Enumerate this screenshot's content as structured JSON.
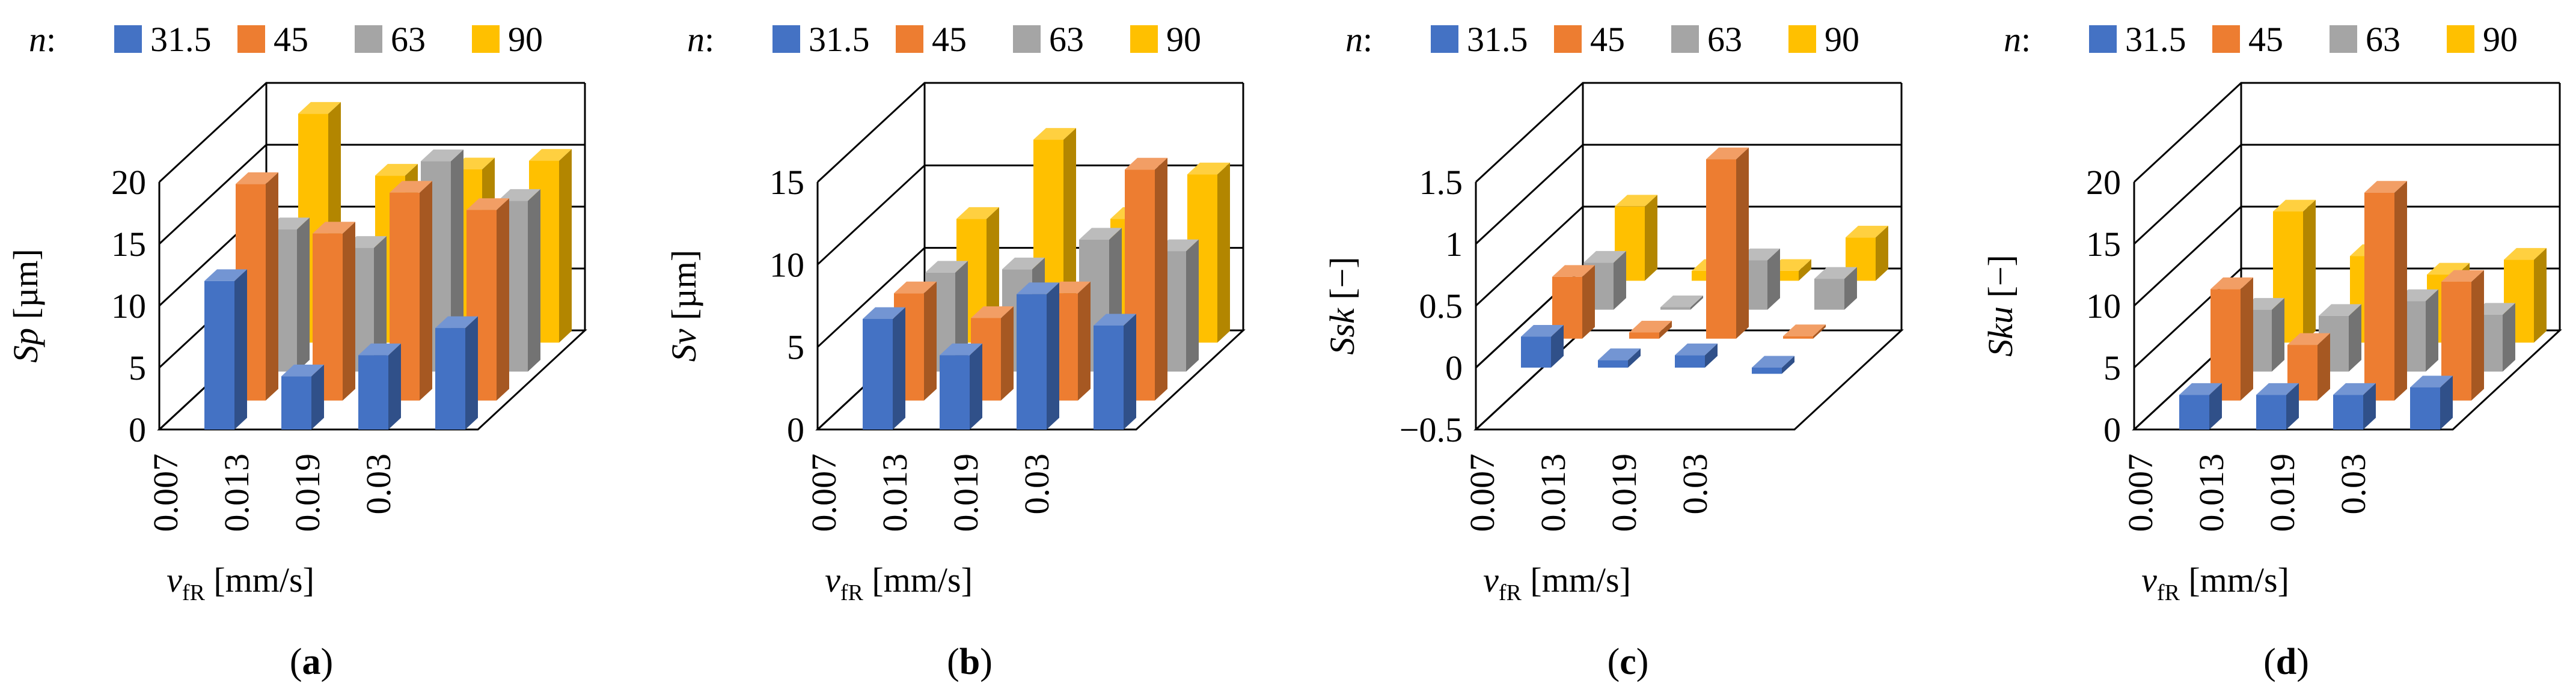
{
  "legend_title": "n:",
  "colors": {
    "31.5": "#4472C4",
    "45": "#ED7D31",
    "63": "#A5A5A5",
    "90": "#FFC000",
    "grid": "#000000"
  },
  "chart_data": [
    {
      "type": "bar",
      "panel_label": "(a)",
      "title": "",
      "ylabel_symbol": "Sp",
      "ylabel_unit": "[µm]",
      "xlabel_symbol": "v",
      "xlabel_sub": "fR",
      "xlabel_unit": "[mm/s]",
      "categories": [
        "0.007",
        "0.013",
        "0.019",
        "0.03"
      ],
      "ylim": [
        0,
        20
      ],
      "yticks": [
        "0",
        "5",
        "10",
        "15",
        "20"
      ],
      "series": [
        {
          "name": "31.5",
          "values": [
            12,
            4.3,
            6,
            8.2
          ]
        },
        {
          "name": "45",
          "values": [
            17.5,
            13.5,
            16.8,
            15.4
          ]
        },
        {
          "name": "63",
          "values": [
            11.5,
            10,
            17,
            13.8
          ]
        },
        {
          "name": "90",
          "values": [
            18.5,
            13.5,
            14,
            14.7
          ]
        }
      ]
    },
    {
      "type": "bar",
      "panel_label": "(b)",
      "title": "",
      "ylabel_symbol": "Sv",
      "ylabel_unit": "[µm]",
      "xlabel_symbol": "v",
      "xlabel_sub": "fR",
      "xlabel_unit": "[mm/s]",
      "categories": [
        "0.007",
        "0.013",
        "0.019",
        "0.03"
      ],
      "ylim": [
        0,
        15
      ],
      "yticks": [
        "0",
        "5",
        "10",
        "15"
      ],
      "series": [
        {
          "name": "31.5",
          "values": [
            6.7,
            4.5,
            8.2,
            6.3
          ]
        },
        {
          "name": "45",
          "values": [
            6.5,
            5,
            6.5,
            14
          ]
        },
        {
          "name": "63",
          "values": [
            6,
            6.2,
            8,
            7.3
          ]
        },
        {
          "name": "90",
          "values": [
            7.5,
            12.3,
            7.5,
            10.2
          ]
        }
      ]
    },
    {
      "type": "bar",
      "panel_label": "(c)",
      "title": "",
      "ylabel_symbol": "Ssk",
      "ylabel_unit": "[−]",
      "xlabel_symbol": "v",
      "xlabel_sub": "fR",
      "xlabel_unit": "[mm/s]",
      "categories": [
        "0.007",
        "0.013",
        "0.019",
        "0.03"
      ],
      "ylim": [
        -0.5,
        1.5
      ],
      "yticks": [
        "−0.5",
        "0",
        "0.5",
        "1",
        "1.5"
      ],
      "series": [
        {
          "name": "31.5",
          "values": [
            0.25,
            0.06,
            0.1,
            -0.05
          ]
        },
        {
          "name": "45",
          "values": [
            0.5,
            0.05,
            1.45,
            0.02
          ]
        },
        {
          "name": "63",
          "values": [
            0.38,
            0.02,
            0.4,
            0.25
          ]
        },
        {
          "name": "90",
          "values": [
            0.6,
            0.08,
            0.08,
            0.35
          ]
        }
      ]
    },
    {
      "type": "bar",
      "panel_label": "(d)",
      "title": "",
      "ylabel_symbol": "Sku",
      "ylabel_unit": "[−]",
      "xlabel_symbol": "v",
      "xlabel_sub": "fR",
      "xlabel_unit": "[mm/s]",
      "categories": [
        "0.007",
        "0.013",
        "0.019",
        "0.03"
      ],
      "ylim": [
        0,
        20
      ],
      "yticks": [
        "0",
        "5",
        "10",
        "15",
        "20"
      ],
      "series": [
        {
          "name": "31.5",
          "values": [
            2.8,
            2.8,
            2.8,
            3.4
          ]
        },
        {
          "name": "45",
          "values": [
            9,
            4.5,
            16.8,
            9.6
          ]
        },
        {
          "name": "63",
          "values": [
            5,
            4.5,
            5.7,
            4.6
          ]
        },
        {
          "name": "90",
          "values": [
            10.6,
            7,
            5.5,
            6.7
          ]
        }
      ]
    }
  ]
}
